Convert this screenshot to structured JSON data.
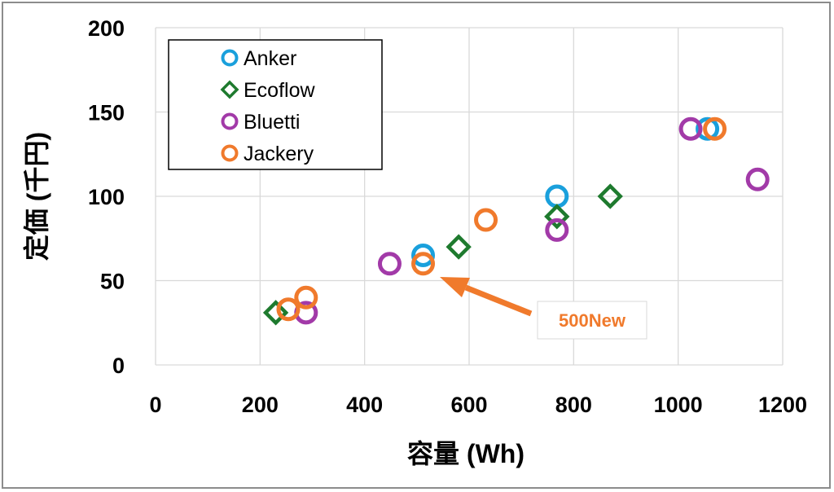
{
  "chart_data": {
    "type": "scatter",
    "xlabel": "容量 (Wh)",
    "ylabel": "定価 (千円)",
    "xlim": [
      0,
      1200
    ],
    "ylim": [
      0,
      200
    ],
    "x_ticks": [
      0,
      200,
      400,
      600,
      800,
      1000,
      1200
    ],
    "y_ticks": [
      0,
      50,
      100,
      150,
      200
    ],
    "grid": true,
    "legend_position": "top-left",
    "series": [
      {
        "name": "Anker",
        "marker": "circle",
        "color": "#1aa0dc",
        "points": [
          {
            "x": 512,
            "y": 65
          },
          {
            "x": 768,
            "y": 100
          },
          {
            "x": 1056,
            "y": 140
          }
        ]
      },
      {
        "name": "Ecoflow",
        "marker": "diamond",
        "color": "#1e7a2e",
        "points": [
          {
            "x": 230,
            "y": 31
          },
          {
            "x": 580,
            "y": 70
          },
          {
            "x": 768,
            "y": 88
          },
          {
            "x": 870,
            "y": 100
          }
        ]
      },
      {
        "name": "Bluetti",
        "marker": "circle",
        "color": "#a23aa8",
        "points": [
          {
            "x": 288,
            "y": 31
          },
          {
            "x": 448,
            "y": 60
          },
          {
            "x": 768,
            "y": 80
          },
          {
            "x": 1024,
            "y": 140
          },
          {
            "x": 1152,
            "y": 110
          }
        ]
      },
      {
        "name": "Jackery",
        "marker": "circle",
        "color": "#f07a2c",
        "points": [
          {
            "x": 254,
            "y": 33
          },
          {
            "x": 288,
            "y": 40
          },
          {
            "x": 512,
            "y": 60
          },
          {
            "x": 632,
            "y": 86
          },
          {
            "x": 1070,
            "y": 140
          }
        ]
      }
    ],
    "annotations": [
      {
        "text": "500New",
        "target": {
          "x": 512,
          "y": 60
        },
        "color": "#f07a2c"
      }
    ]
  }
}
